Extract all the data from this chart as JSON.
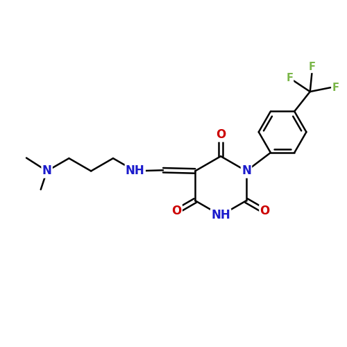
{
  "bg_color": "#ffffff",
  "bond_color": "#000000",
  "bond_width": 1.8,
  "dbo": 0.055,
  "atom_colors": {
    "N": "#1a1acc",
    "O": "#cc0000",
    "F": "#7ab648",
    "C": "#000000"
  },
  "fs_main": 12,
  "fs_small": 10.5
}
